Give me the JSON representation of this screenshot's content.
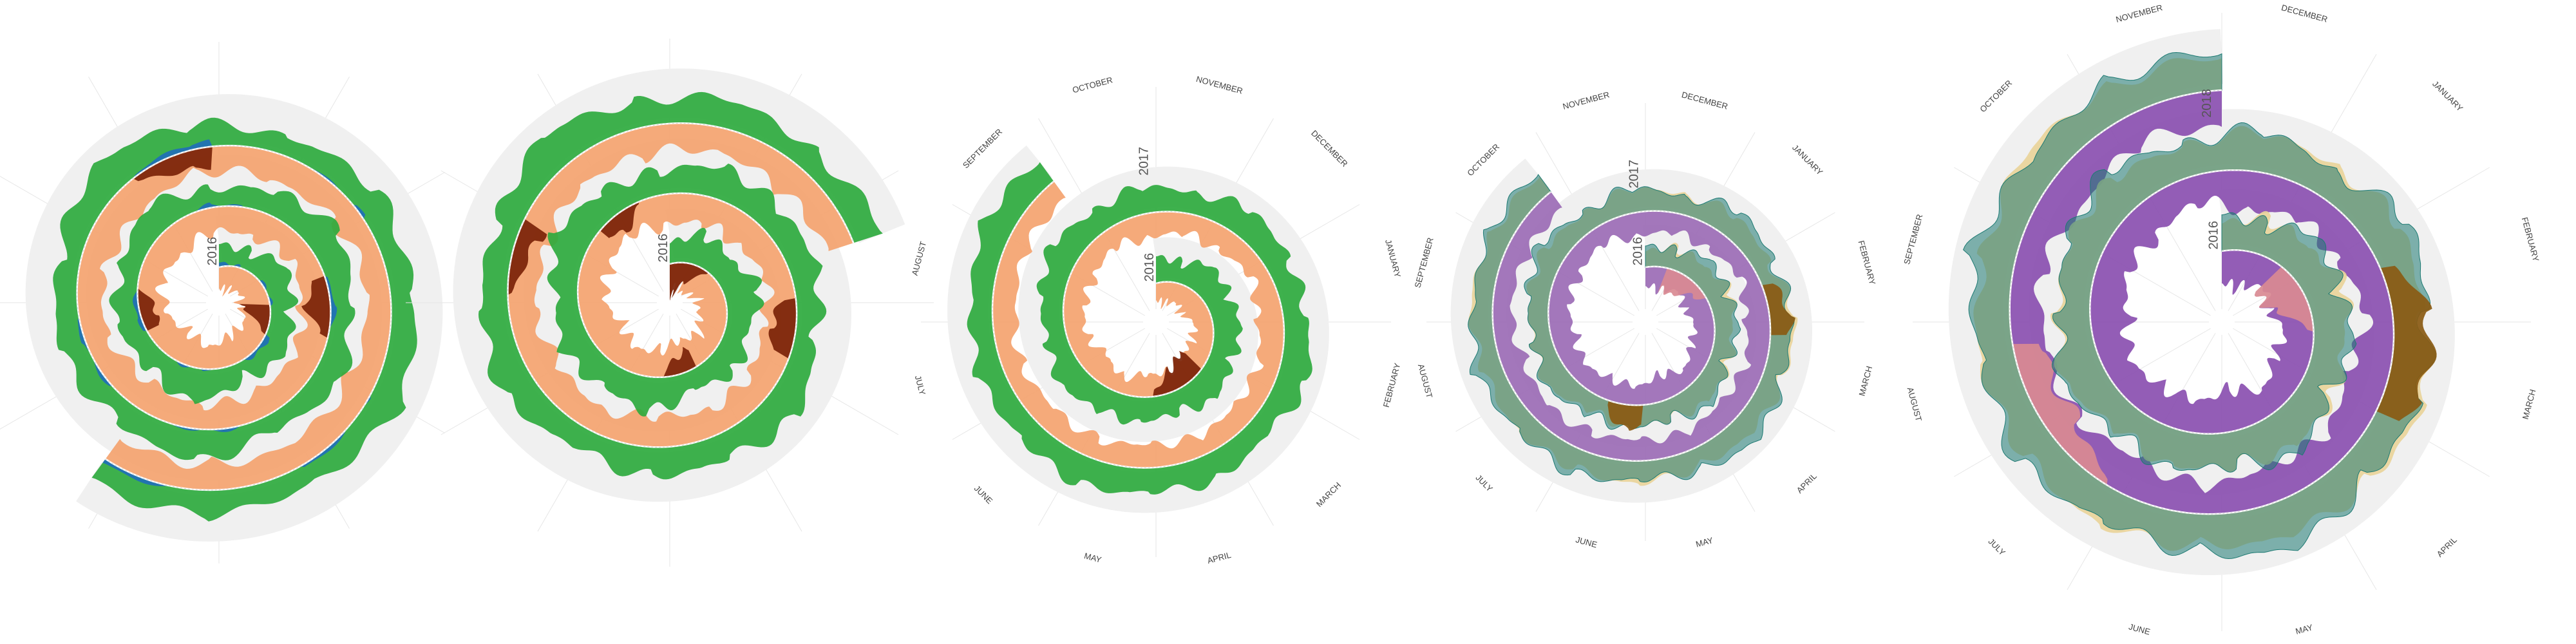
{
  "page": {
    "title": "",
    "background": "#ffffff"
  },
  "chart_data": [
    {
      "type": "area",
      "form": "spiral",
      "panel": "spiral-1",
      "turns": 2.6,
      "month_labels": [],
      "year_labels": [
        "2016"
      ],
      "series": [
        {
          "color": "#f4a36f",
          "side": "inner",
          "values": [
            0.55,
            0.7,
            0.62,
            0.8,
            0.66,
            0.74,
            0.6,
            0.85,
            0.7,
            0.62,
            0.78,
            0.64,
            0.72,
            0.58,
            0.8,
            0.66,
            0.7,
            0.62,
            0.76,
            0.6,
            0.68,
            0.82,
            0.6,
            0.72,
            0.66,
            0.58,
            0.74,
            0.62,
            0.7,
            0.64
          ]
        },
        {
          "color": "#7a2308",
          "side": "inner-highlight",
          "values": [
            0,
            0,
            0,
            0.9,
            0,
            0,
            0,
            0,
            0.5,
            0,
            0,
            0,
            0,
            0,
            0.7,
            0,
            0,
            0,
            0,
            0,
            0,
            0,
            0.6,
            0,
            0,
            0,
            0,
            0,
            0,
            0
          ]
        },
        {
          "color": "#2eaa3e",
          "side": "outer",
          "values": [
            0.6,
            0.45,
            0.8,
            0.5,
            0.7,
            0.4,
            0.9,
            0.55,
            0.65,
            0.5,
            0.75,
            0.45,
            0.6,
            0.85,
            0.5,
            0.7,
            0.4,
            0.8,
            0.55,
            0.65,
            0.5,
            0.9,
            0.6,
            0.45,
            0.7,
            0.55,
            0.8,
            0.5,
            0.65,
            0.6
          ]
        },
        {
          "color": "#1f6fb8",
          "side": "outer-tick",
          "values": [
            0.3,
            0,
            0.2,
            0,
            0.4,
            0,
            0.1,
            0,
            0.3,
            0,
            0,
            0.2,
            0,
            0,
            0.3,
            0,
            0,
            0.1,
            0,
            0.2,
            0,
            0,
            0.4,
            0,
            0.1,
            0,
            0,
            0.2,
            0,
            0.3
          ]
        }
      ]
    },
    {
      "type": "area",
      "form": "spiral",
      "panel": "spiral-2",
      "turns": 2.2,
      "month_labels": [],
      "year_labels": [
        "2016"
      ],
      "series": [
        {
          "color": "#f4a36f",
          "side": "inner",
          "values": [
            0.7,
            0.6,
            0.85,
            0.65,
            0.75,
            0.55,
            0.8,
            0.7,
            0.6,
            0.9,
            0.65,
            0.72,
            0.58,
            0.8,
            0.66,
            0.74,
            0.6,
            0.82,
            0.68,
            0.62,
            0.78,
            0.6,
            0.72,
            0.66,
            0.8,
            0.62,
            0.7,
            0.58,
            0.76,
            0.64
          ]
        },
        {
          "color": "#7a2308",
          "side": "inner-highlight",
          "values": [
            0.95,
            0.8,
            0,
            0,
            0,
            0,
            0.6,
            0,
            0,
            0,
            0,
            0,
            0.5,
            0,
            0,
            0,
            0,
            0.7,
            0,
            0,
            0,
            0,
            0,
            0,
            0.6,
            0,
            0,
            0,
            0,
            0
          ]
        },
        {
          "color": "#2eaa3e",
          "side": "outer",
          "values": [
            0.5,
            0.8,
            0.6,
            0.9,
            0.55,
            0.7,
            0.45,
            0.85,
            0.6,
            0.75,
            0.5,
            0.9,
            0.65,
            0.55,
            0.8,
            0.6,
            0.7,
            0.45,
            0.85,
            0.6,
            0.7,
            0.5,
            0.8,
            0.65,
            0.55,
            0.9,
            0.6,
            0.7,
            0.5,
            0.75
          ]
        }
      ]
    },
    {
      "type": "area",
      "form": "spiral",
      "panel": "spiral-3",
      "turns": 1.9,
      "month_labels": [
        "NOVEMBER",
        "DECEMBER",
        "JANUARY",
        "FEBRUARY",
        "MARCH",
        "APRIL",
        "MAY",
        "JUNE",
        "JULY",
        "AUGUST",
        "SEPTEMBER",
        "OCTOBER"
      ],
      "year_labels": [
        "2016",
        "2017"
      ],
      "series": [
        {
          "color": "#f4a36f",
          "side": "inner",
          "values": [
            0.5,
            0.7,
            0.6,
            0.8,
            0.55,
            0.65,
            0.75,
            0.6,
            0.7,
            0.5,
            0.8,
            0.6,
            0.65,
            0.7,
            0.55,
            0.75,
            0.6,
            0.7,
            0.5,
            0.8,
            0.62,
            0.68,
            0.55,
            0.72,
            0.6,
            0.66,
            0.58,
            0.7,
            0.62,
            0.6
          ]
        },
        {
          "color": "#7a2308",
          "side": "inner-highlight",
          "values": [
            0,
            0,
            0,
            0,
            0,
            0,
            0.9,
            0.7,
            0,
            0,
            0,
            0,
            0,
            0,
            0,
            0,
            0,
            0,
            0,
            0,
            0,
            0,
            0,
            0,
            0,
            0,
            0,
            0,
            0,
            0
          ]
        },
        {
          "color": "#2eaa3e",
          "side": "outer",
          "values": [
            0.8,
            0.6,
            0.95,
            0.7,
            0.85,
            0.65,
            0.9,
            0.6,
            0.75,
            0.7,
            0.85,
            0.6,
            0.7,
            0.9,
            0.65,
            0.8,
            0.6,
            0.85,
            0.7,
            0.65,
            0.9,
            0.6,
            0.8,
            0.7,
            0.85,
            0.65,
            0.75,
            0.6,
            0.9,
            0.7
          ]
        }
      ]
    },
    {
      "type": "area",
      "form": "spiral",
      "panel": "spiral-4",
      "turns": 1.9,
      "month_labels": [
        "DECEMBER",
        "JANUARY",
        "FEBRUARY",
        "MARCH",
        "APRIL",
        "MAY",
        "JUNE",
        "JULY",
        "AUGUST",
        "SEPTEMBER",
        "OCTOBER",
        "NOVEMBER"
      ],
      "year_labels": [
        "2016",
        "2017"
      ],
      "series": [
        {
          "color": "#9b6bb5",
          "side": "inner",
          "values": [
            0.6,
            0.75,
            0.55,
            0.8,
            0.65,
            0.7,
            0.5,
            0.85,
            0.6,
            0.72,
            0.58,
            0.8,
            0.66,
            0.7,
            0.55,
            0.78,
            0.62,
            0.68,
            0.5,
            0.82,
            0.6,
            0.74,
            0.56,
            0.7,
            0.64,
            0.6,
            0.76,
            0.58,
            0.7,
            0.62
          ]
        },
        {
          "color": "#d98a92",
          "side": "inner-highlight",
          "values": [
            0,
            0.8,
            0.8,
            0,
            0,
            0,
            0,
            0,
            0,
            0,
            0,
            0,
            0,
            0,
            0,
            0,
            0,
            0,
            0,
            0,
            0,
            0,
            0,
            0,
            0,
            0,
            0,
            0,
            0,
            0
          ]
        },
        {
          "color": "#e9d49a",
          "side": "outer",
          "values": [
            0.5,
            0.7,
            0.6,
            0.8,
            0.55,
            0.65,
            0.75,
            0.6,
            0.7,
            0.5,
            0.8,
            0.6,
            0.65,
            0.7,
            0.55,
            0.75,
            0.6,
            0.7,
            0.5,
            0.8,
            0.62,
            0.68,
            0.55,
            0.72,
            0.6,
            0.66,
            0.58,
            0.7,
            0.62,
            0.6
          ]
        },
        {
          "color": "#1d7a73",
          "side": "outer-line",
          "values": [
            0.6,
            0.5,
            0.8,
            0.55,
            0.7,
            0.45,
            0.85,
            0.5,
            0.65,
            0.55,
            0.75,
            0.5,
            0.6,
            0.8,
            0.5,
            0.7,
            0.45,
            0.8,
            0.55,
            0.6,
            0.5,
            0.85,
            0.6,
            0.5,
            0.7,
            0.55,
            0.75,
            0.5,
            0.65,
            0.6
          ]
        },
        {
          "color": "#8a5a12",
          "side": "outer-highlight",
          "values": [
            0,
            0,
            0,
            0,
            0,
            0,
            0,
            0,
            0.9,
            0,
            0,
            0,
            0,
            0,
            0,
            0,
            0,
            0,
            0,
            0.8,
            0,
            0,
            0,
            0,
            0,
            0,
            0,
            0,
            0,
            0
          ]
        }
      ]
    },
    {
      "type": "area",
      "form": "spiral",
      "panel": "spiral-5",
      "turns": 2.0,
      "month_labels": [
        "DECEMBER",
        "JANUARY",
        "FEBRUARY",
        "MARCH",
        "APRIL",
        "MAY",
        "JUNE",
        "JULY",
        "AUGUST",
        "SEPTEMBER",
        "OCTOBER",
        "NOVEMBER"
      ],
      "year_labels": [
        "2016",
        "2018"
      ],
      "series": [
        {
          "color": "#8a4fb0",
          "side": "inner",
          "values": [
            0.7,
            0.85,
            0.6,
            0.9,
            0.65,
            0.8,
            0.55,
            0.95,
            0.7,
            0.75,
            0.6,
            0.88,
            0.68,
            0.8,
            0.58,
            0.9,
            0.66,
            0.78,
            0.55,
            0.92,
            0.64,
            0.82,
            0.6,
            0.86,
            0.7,
            0.74,
            0.62,
            0.88,
            0.66,
            0.8
          ]
        },
        {
          "color": "#d98a92",
          "side": "inner-highlight",
          "values": [
            0,
            0,
            0.9,
            0.9,
            0,
            0,
            0,
            0,
            0,
            0,
            0,
            0,
            0,
            0,
            0,
            0,
            0,
            0,
            0,
            0,
            0,
            0,
            0,
            0,
            0.7,
            0.7,
            0,
            0,
            0,
            0
          ]
        },
        {
          "color": "#e9d49a",
          "side": "outer",
          "values": [
            0.6,
            0.8,
            0.7,
            0.9,
            0.65,
            0.75,
            0.85,
            0.7,
            0.8,
            0.6,
            0.9,
            0.7,
            0.75,
            0.8,
            0.65,
            0.85,
            0.7,
            0.8,
            0.6,
            0.9,
            0.72,
            0.78,
            0.65,
            0.82,
            0.7,
            0.76,
            0.68,
            0.8,
            0.72,
            0.7
          ]
        },
        {
          "color": "#1d7a73",
          "side": "outer-line",
          "values": [
            0.7,
            0.55,
            0.9,
            0.6,
            0.8,
            0.5,
            0.95,
            0.6,
            0.75,
            0.6,
            0.85,
            0.55,
            0.7,
            0.9,
            0.6,
            0.8,
            0.5,
            0.9,
            0.6,
            0.7,
            0.55,
            0.95,
            0.7,
            0.6,
            0.8,
            0.6,
            0.85,
            0.55,
            0.75,
            0.7
          ]
        },
        {
          "color": "#8a5a12",
          "side": "outer-highlight",
          "values": [
            0,
            0,
            0,
            0,
            0,
            0,
            0,
            0,
            0,
            0,
            0,
            0,
            0,
            0,
            0,
            0,
            0,
            0,
            0.85,
            0.85,
            0,
            0,
            0,
            0,
            0,
            0,
            0,
            0,
            0,
            0
          ]
        }
      ]
    }
  ]
}
